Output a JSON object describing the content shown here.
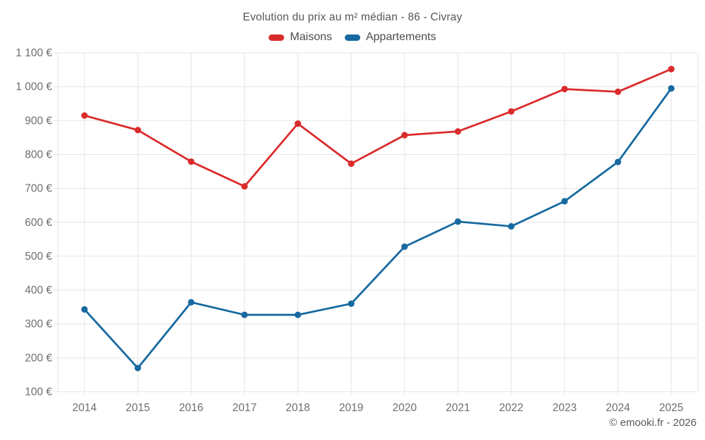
{
  "page": {
    "title": "Evolution du prix au m² médian - 86 - Civray",
    "footer": "© emooki.fr - 2026"
  },
  "legend": {
    "items": [
      {
        "label": "Maisons"
      },
      {
        "label": "Appartements"
      }
    ]
  },
  "chart_data": {
    "type": "line",
    "title": "Evolution du prix au m² médian - 86 - Civray",
    "x": [
      2014,
      2015,
      2016,
      2017,
      2018,
      2019,
      2020,
      2021,
      2022,
      2023,
      2024,
      2025
    ],
    "series": [
      {
        "name": "Maisons",
        "color": "#da2b2b",
        "values": [
          915,
          872,
          779,
          706,
          891,
          773,
          857,
          868,
          927,
          993,
          985,
          1052
        ]
      },
      {
        "name": "Appartements",
        "color": "#1769a0",
        "values": [
          343,
          170,
          364,
          327,
          327,
          360,
          528,
          602,
          588,
          662,
          778,
          995
        ]
      }
    ],
    "ylim": [
      100,
      1100
    ],
    "ytick_step": 100,
    "ytick_suffix": " €",
    "grid": true,
    "legend_position": "top",
    "grid_color": "#e5e5e5",
    "axis_text_color": "#6e6e6e",
    "marker_radius": 4.6,
    "line_width": 2.8
  }
}
